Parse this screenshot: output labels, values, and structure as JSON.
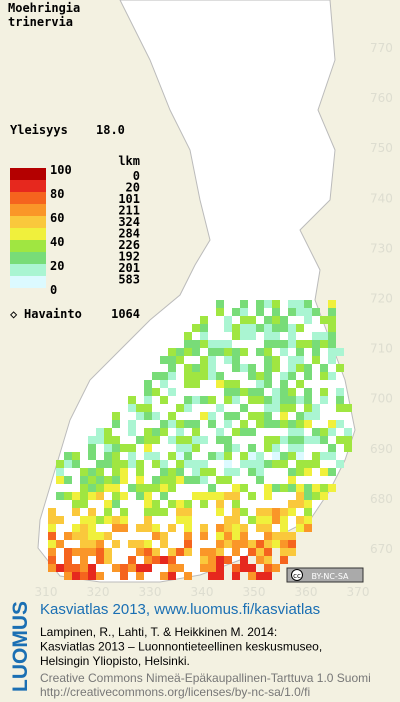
{
  "title": [
    "Moehringia",
    "trinervia"
  ],
  "frequency": {
    "label": "Yleisyys",
    "value": "18.0"
  },
  "legend": {
    "scale": [
      100,
      80,
      60,
      40,
      20,
      0
    ],
    "colors": [
      "#b40000",
      "#e6281e",
      "#f5641e",
      "#fa9628",
      "#fac83c",
      "#f0f03c",
      "#a0e641",
      "#78dc78",
      "#aaf5d2",
      "#dcfaff"
    ],
    "count_header": "lkm",
    "counts": [
      0,
      20,
      101,
      211,
      324,
      284,
      226,
      192,
      201,
      583
    ]
  },
  "observations": {
    "label": "Havainto",
    "value": 1064
  },
  "y_labels": [
    770,
    760,
    750,
    740,
    730,
    720,
    710,
    700,
    690,
    680,
    670
  ],
  "x_labels": [
    310,
    320,
    330,
    340,
    350,
    360,
    370
  ],
  "badge": "BY-NC-SA",
  "logo": "LUOMUS",
  "footer": {
    "link": "Kasviatlas 2013, www.luomus.fi/kasviatlas",
    "citation": [
      "Lampinen, R., Lahti, T. & Heikkinen M. 2014:",
      "Kasviatlas 2013 – Luonnontieteellinen keskusmuseo,",
      "Helsingin Yliopisto, Helsinki."
    ],
    "license": [
      "Creative Commons Nimeä-Epäkaupallinen-Tarttuva 1.0 Suomi",
      "http://creativecommons.org/licenses/by-nc-sa/1.0/fi"
    ]
  }
}
